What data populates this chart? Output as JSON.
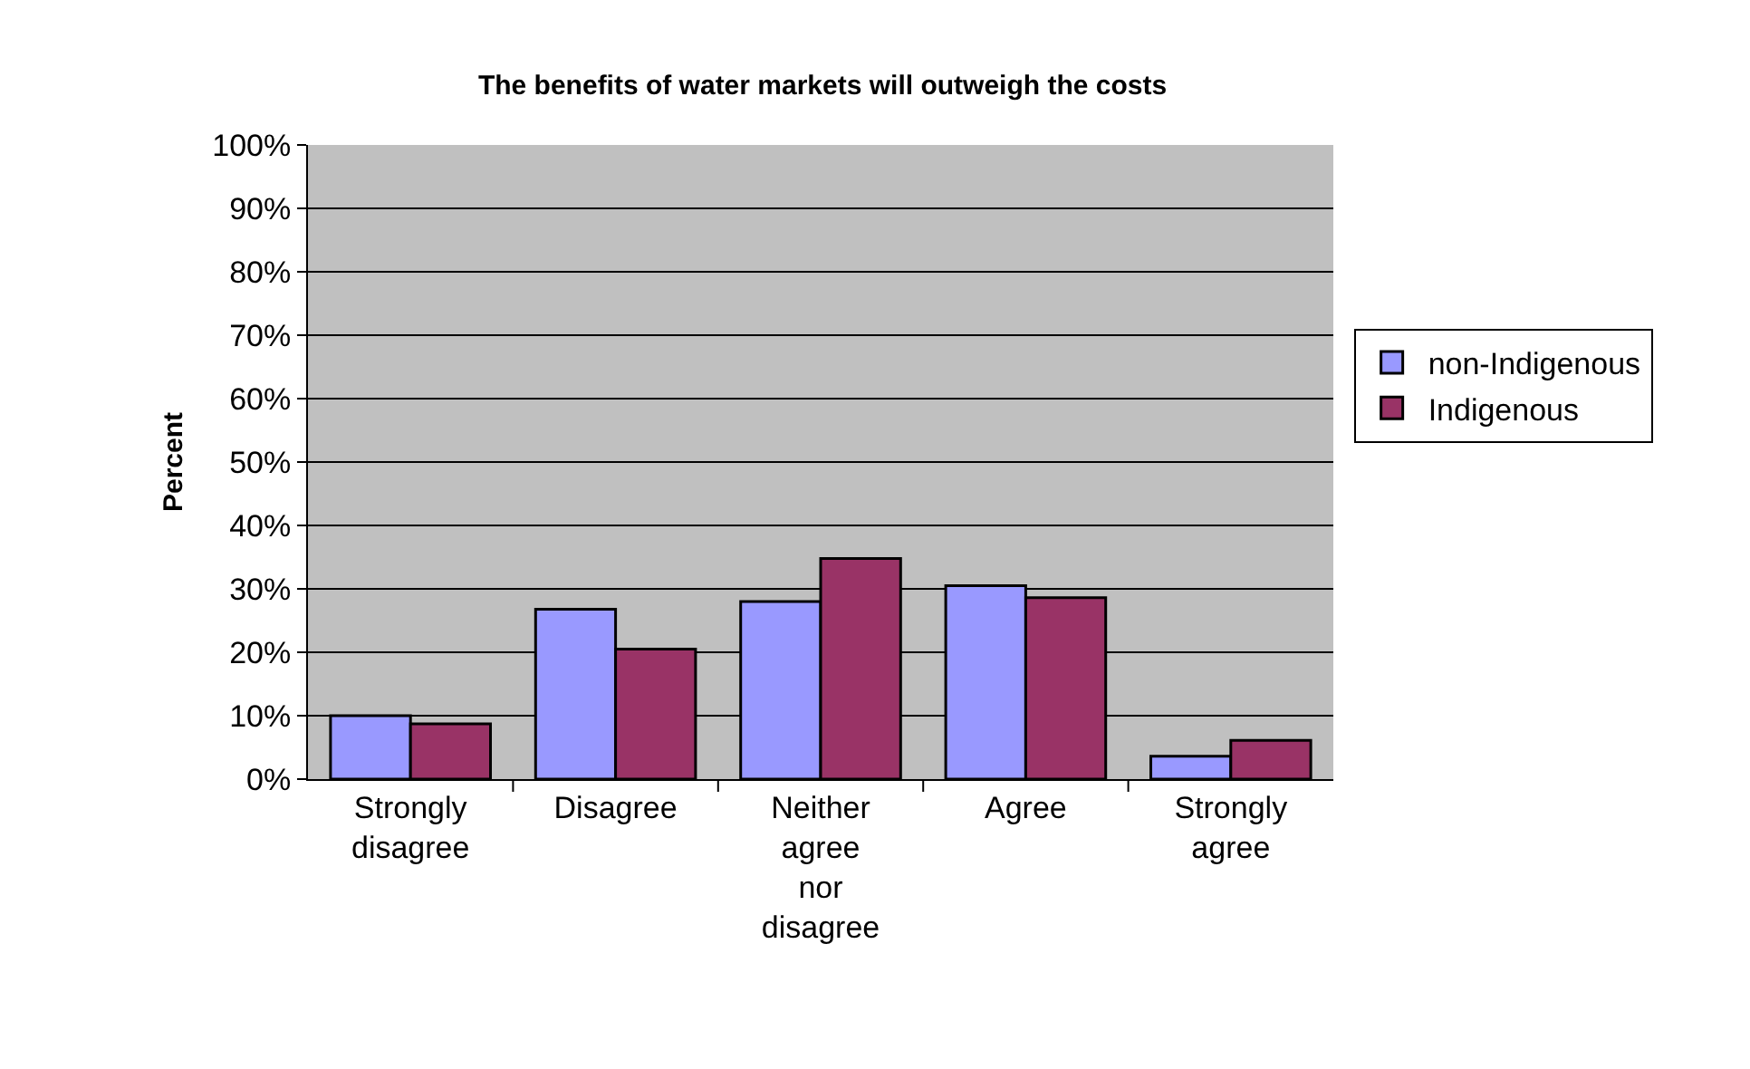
{
  "chart_data": {
    "type": "bar",
    "title": "The benefits of water markets will outweigh the costs",
    "ylabel": "Percent",
    "categories": [
      "Strongly disagree",
      "Disagree",
      "Neither agree nor disagree",
      "Agree",
      "Strongly agree"
    ],
    "series": [
      {
        "name": "non-Indigenous",
        "color": "#9999ff",
        "values": [
          10.0,
          26.8,
          28.0,
          30.5,
          3.6
        ]
      },
      {
        "name": "Indigenous",
        "color": "#993366",
        "values": [
          8.7,
          20.5,
          34.8,
          28.6,
          6.1
        ]
      }
    ],
    "ylim": [
      0,
      100
    ],
    "yticks": [
      {
        "value": 0,
        "label": "0%"
      },
      {
        "value": 10,
        "label": "10%"
      },
      {
        "value": 20,
        "label": "20%"
      },
      {
        "value": 30,
        "label": "30%"
      },
      {
        "value": 40,
        "label": "40%"
      },
      {
        "value": 50,
        "label": "50%"
      },
      {
        "value": 60,
        "label": "60%"
      },
      {
        "value": 70,
        "label": "70%"
      },
      {
        "value": 80,
        "label": "80%"
      },
      {
        "value": 90,
        "label": "90%"
      },
      {
        "value": 100,
        "label": "100%"
      }
    ],
    "grid": "y",
    "legend": "right"
  }
}
